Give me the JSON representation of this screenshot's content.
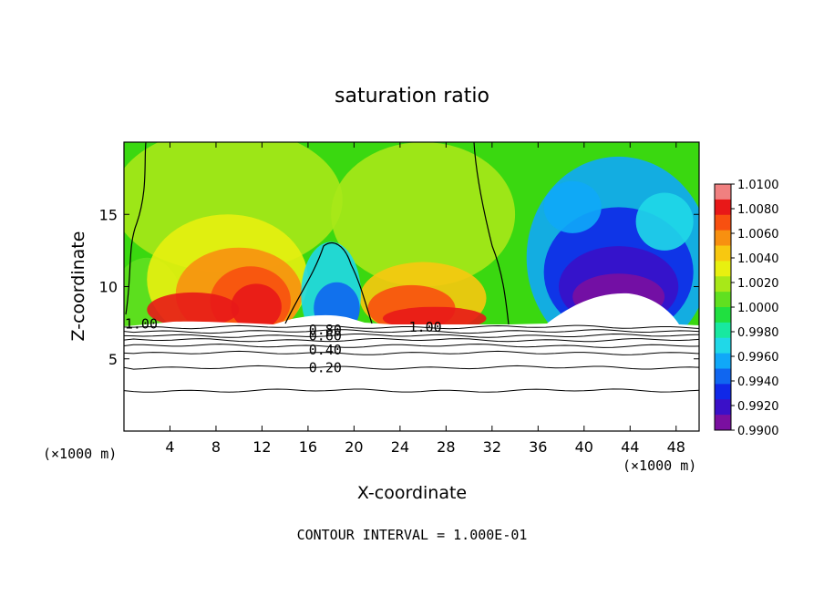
{
  "chart_data": {
    "type": "heatmap",
    "title": "saturation ratio",
    "xlabel": "X-coordinate",
    "ylabel": "Z-coordinate",
    "x_unit": "(×1000 m)",
    "y_unit": "(×1000 m)",
    "xlim": [
      0,
      50
    ],
    "ylim": [
      0,
      20
    ],
    "x_ticks": [
      4,
      8,
      12,
      16,
      20,
      24,
      28,
      32,
      36,
      40,
      44,
      48
    ],
    "y_ticks": [
      5,
      10,
      15
    ],
    "footer": "CONTOUR INTERVAL = 1.000E-01",
    "colorbar": {
      "labels": [
        "1.0100",
        "1.0080",
        "1.0060",
        "1.0040",
        "1.0020",
        "1.0000",
        "0.9980",
        "0.9960",
        "0.9940",
        "0.9920",
        "0.9900"
      ],
      "min": 0.99,
      "max": 1.01,
      "colors": [
        "#7a0fa0",
        "#3a10c8",
        "#1028e8",
        "#1066f0",
        "#10a8f8",
        "#20d8e8",
        "#18e8a0",
        "#20e040",
        "#60e020",
        "#a8e818",
        "#e8f010",
        "#f8c810",
        "#f89010",
        "#f85010",
        "#e81818",
        "#f08080"
      ]
    },
    "contour_labels": [
      {
        "text": "1.00",
        "x": 1.5,
        "z": 7.4
      },
      {
        "text": "0.80",
        "x": 17.5,
        "z": 7.0
      },
      {
        "text": "0.60",
        "x": 17.5,
        "z": 6.6
      },
      {
        "text": "0.40",
        "x": 17.5,
        "z": 5.6
      },
      {
        "text": "0.20",
        "x": 17.5,
        "z": 4.4
      },
      {
        "text": "1.00",
        "x": 26.2,
        "z": 7.2
      }
    ],
    "contour_levels": [
      0.2,
      0.4,
      0.6,
      0.8,
      1.0
    ],
    "subcloud_contours_z": [
      2.8,
      4.4,
      5.4,
      5.9,
      6.3,
      6.6,
      6.9,
      7.2
    ]
  }
}
